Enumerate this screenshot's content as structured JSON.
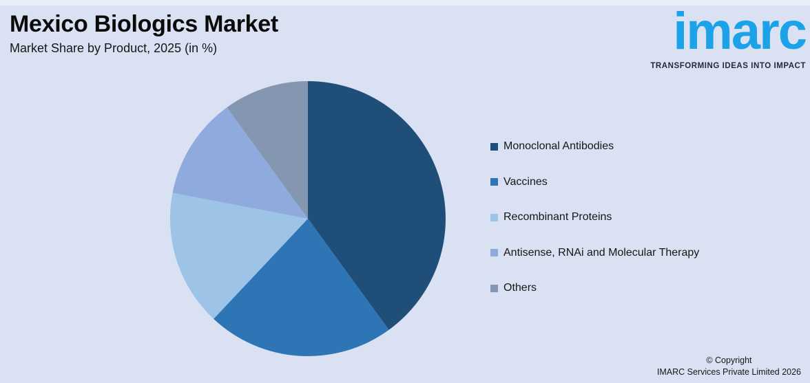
{
  "header": {
    "title": "Mexico Biologics Market",
    "subtitle": "Market Share by Product, 2025 (in %)"
  },
  "logo": {
    "wordmark": "imarc",
    "tagline": "TRANSFORMING IDEAS INTO IMPACT",
    "brand_color": "#1ca2e8",
    "tagline_color": "#222b3c"
  },
  "chart_data": {
    "type": "pie",
    "title": "Mexico Biologics Market",
    "subtitle": "Market Share by Product, 2025 (in %)",
    "unit": "%",
    "labels": [
      "Monoclonal Antibodies",
      "Vaccines",
      "Recombinant Proteins",
      "Antisense, RNAi and Molecular Therapy",
      "Others"
    ],
    "values": [
      40,
      22,
      16,
      12,
      10
    ],
    "colors": [
      "#1F4E79",
      "#2E75B6",
      "#9DC3E6",
      "#8FAADC",
      "#8496B0"
    ],
    "start_angle_deg": 0,
    "direction": "clockwise",
    "legend_position": "right",
    "background_color": "#d9e1f2"
  },
  "footer": {
    "line1": "© Copyright",
    "line2": "IMARC Services Private Limited 2026"
  }
}
